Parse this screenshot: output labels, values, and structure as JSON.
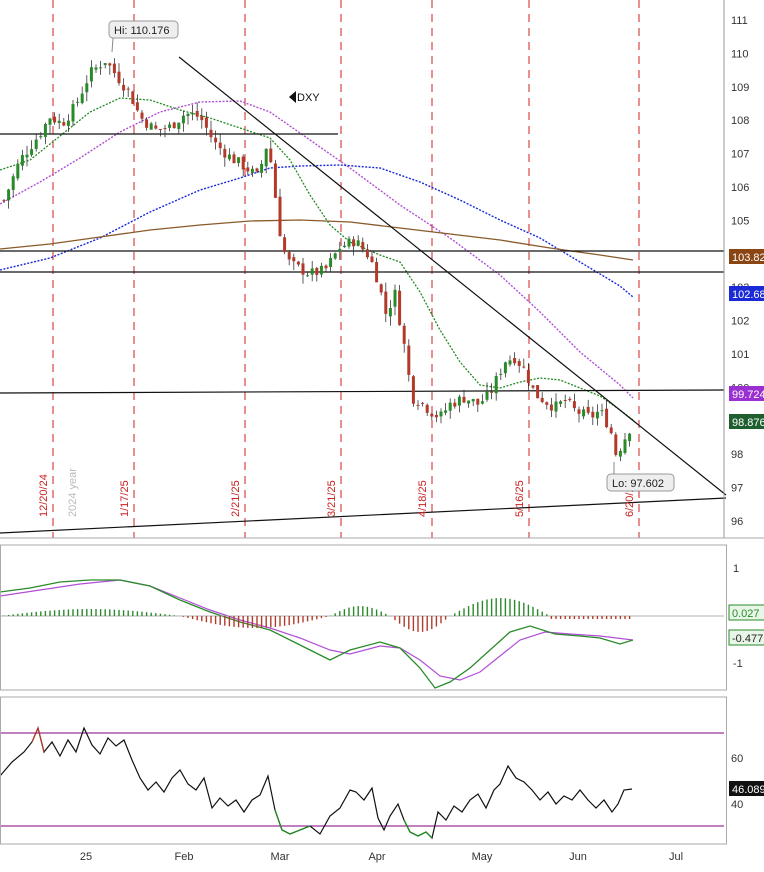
{
  "symbol": "DXY",
  "colors": {
    "up": "#2a8a2a",
    "down": "#b33a2a",
    "wick": "#333333",
    "vline": "#cc2222",
    "ma_green": "#228b22",
    "ma_purple": "#b04fd6",
    "ma_blue": "#1a2ad6",
    "ma_brown": "#8a5a2a",
    "macd": "#2a8a2a",
    "signal": "#b04fd6",
    "rsi": "#111111",
    "rsi_band": "#800080",
    "tag_103": "#8b4513",
    "tag_102": "#1a2ad6",
    "tag_99": "#9b30d0",
    "tag_98": "#1f5f2f",
    "tag_macd1": "#2a8a2a",
    "tag_macd2": "#2a8a2a",
    "tag_rsi": "#111111"
  },
  "labels": {
    "hi": "Hi: 110.176",
    "lo": "Lo: 97.602",
    "year": "2024 year",
    "symbol": "DXY"
  },
  "date_labels": [
    "12/20/24",
    "1/17/25",
    "2/21/25",
    "3/21/25",
    "4/18/25",
    "5/16/25",
    "6/20/25"
  ],
  "x_axis": [
    "25",
    "Feb",
    "Mar",
    "Apr",
    "May",
    "Jun",
    "Jul"
  ],
  "price_axis": [
    "111",
    "110",
    "109",
    "108",
    "107",
    "106",
    "105",
    "103",
    "102",
    "101",
    "100",
    "98",
    "97",
    "96"
  ],
  "price_tags": [
    "103.82",
    "102.68",
    "99.724",
    "98.876"
  ],
  "macd_axis": [
    "1",
    "-1"
  ],
  "macd_tags": [
    "0.027",
    "-0.477"
  ],
  "rsi_axis": [
    "60",
    "40"
  ],
  "rsi_tag": "46.089",
  "chart_data": {
    "type": "line",
    "title": "",
    "xlabel": "",
    "ylabel": "",
    "ylim": [
      95.6,
      111.4
    ],
    "grid": false,
    "price_series": {
      "name": "DXY",
      "x": [
        "2024-12-06",
        "2024-12-13",
        "2024-12-20",
        "2024-12-27",
        "2025-01-03",
        "2025-01-10",
        "2025-01-17",
        "2025-01-24",
        "2025-01-31",
        "2025-02-07",
        "2025-02-14",
        "2025-02-21",
        "2025-02-28",
        "2025-03-07",
        "2025-03-14",
        "2025-03-21",
        "2025-03-28",
        "2025-04-04",
        "2025-04-11",
        "2025-04-18",
        "2025-04-25",
        "2025-05-02",
        "2025-05-09",
        "2025-05-16",
        "2025-05-23",
        "2025-05-30",
        "2025-06-06",
        "2025-06-13",
        "2025-06-20",
        "2025-06-27"
      ],
      "values": [
        105.8,
        106.8,
        107.8,
        108.0,
        108.9,
        109.7,
        109.4,
        107.5,
        108.3,
        107.9,
        106.9,
        106.6,
        107.5,
        103.8,
        103.7,
        104.2,
        104.1,
        102.7,
        99.6,
        99.2,
        99.5,
        100.0,
        100.4,
        101.0,
        99.9,
        99.4,
        99.1,
        98.2,
        98.7,
        98.9
      ]
    },
    "annotations": [
      {
        "text": "Hi: 110.176",
        "x": "2025-01-13",
        "y": 110.176
      },
      {
        "text": "Lo: 97.602",
        "x": "2025-06-17",
        "y": 97.602
      }
    ],
    "horizontal_levels": [
      107.5,
      103.82,
      103.42,
      99.9
    ],
    "macd": {
      "ylim": [
        -1.6,
        1.5
      ],
      "tags": [
        0.027,
        -0.477
      ]
    },
    "rsi": {
      "ylim": [
        22,
        80
      ],
      "bands": [
        30,
        70
      ],
      "tag": 46.089
    }
  }
}
